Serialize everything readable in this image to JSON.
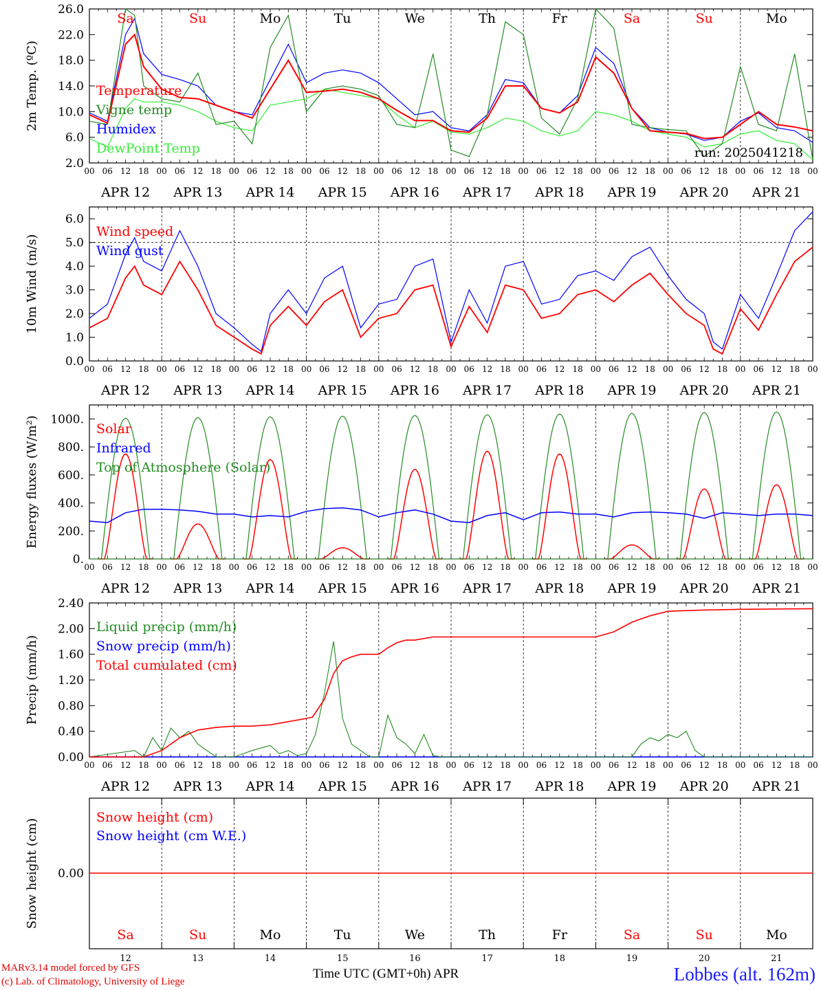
{
  "chart_data": [
    {
      "type": "line",
      "ylabel": "2m Temp. (ºC)",
      "ylim": [
        2.0,
        26.0
      ],
      "yticks": [
        "2.0",
        "6.0",
        "10.0",
        "14.0",
        "18.0",
        "22.0",
        "26.0"
      ],
      "run_label": "run: 2025041218",
      "series": [
        {
          "name": "Temperature",
          "color": "#ff0000",
          "x": [
            0,
            6,
            12,
            15,
            18,
            24,
            30,
            36,
            42,
            48,
            54,
            60,
            66,
            72,
            78,
            84,
            90,
            96,
            102,
            108,
            114,
            120,
            126,
            132,
            138,
            144,
            150,
            156,
            162,
            168,
            174,
            180,
            186,
            192,
            198,
            204,
            210,
            216,
            222,
            228,
            234,
            240
          ],
          "y": [
            9.5,
            8.2,
            20.5,
            22.0,
            17.0,
            13.5,
            12.2,
            12.0,
            11.0,
            10.0,
            9.0,
            13.5,
            18.0,
            13.0,
            13.2,
            13.5,
            13.0,
            12.0,
            10.2,
            8.6,
            8.6,
            7.0,
            6.8,
            9.0,
            14.0,
            14.0,
            10.5,
            9.8,
            11.5,
            18.5,
            16.0,
            10.5,
            7.0,
            6.8,
            6.6,
            5.8,
            6.0,
            8.0,
            10.0,
            8.0,
            7.6,
            7.0
          ]
        },
        {
          "name": "Vigne temp",
          "color": "#228b22",
          "x": [
            0,
            6,
            12,
            15,
            18,
            24,
            30,
            36,
            42,
            48,
            54,
            60,
            66,
            72,
            78,
            84,
            90,
            96,
            102,
            108,
            114,
            120,
            126,
            132,
            138,
            144,
            150,
            156,
            162,
            168,
            174,
            180,
            186,
            192,
            198,
            204,
            210,
            216,
            222,
            228,
            234,
            240
          ],
          "y": [
            8.5,
            8.0,
            26.0,
            25.0,
            14.0,
            12.0,
            11.5,
            16.0,
            8.0,
            8.5,
            5.0,
            20.0,
            25.0,
            10.0,
            13.5,
            14.0,
            13.5,
            12.5,
            8.0,
            7.5,
            19.0,
            4.0,
            3.0,
            9.5,
            24.0,
            22.0,
            9.0,
            6.5,
            12.0,
            26.0,
            23.0,
            8.0,
            7.5,
            7.2,
            7.0,
            3.0,
            5.0,
            17.0,
            8.0,
            7.0,
            19.0,
            2.5
          ]
        },
        {
          "name": "Humidex",
          "color": "#0000ff",
          "x": [
            0,
            6,
            12,
            15,
            18,
            24,
            30,
            36,
            42,
            48,
            54,
            60,
            66,
            72,
            78,
            84,
            90,
            96,
            102,
            108,
            114,
            120,
            126,
            132,
            138,
            144,
            150,
            156,
            162,
            168,
            174,
            180,
            186,
            192,
            198,
            204,
            210,
            216,
            222,
            228,
            234,
            240
          ],
          "y": [
            9.8,
            8.5,
            22.0,
            24.5,
            19.0,
            15.8,
            15.0,
            14.0,
            11.0,
            10.0,
            9.5,
            15.0,
            20.5,
            14.5,
            16.0,
            16.5,
            16.0,
            14.5,
            12.0,
            9.5,
            10.0,
            7.5,
            7.0,
            9.5,
            15.0,
            14.5,
            10.5,
            9.8,
            12.5,
            20.0,
            17.5,
            10.5,
            7.5,
            6.8,
            6.5,
            5.5,
            6.0,
            8.5,
            9.8,
            7.5,
            7.0,
            5.2
          ]
        },
        {
          "name": "DewPoint Temp",
          "color": "#33ee33",
          "x": [
            0,
            6,
            12,
            15,
            18,
            24,
            30,
            36,
            42,
            48,
            54,
            60,
            66,
            72,
            78,
            84,
            90,
            96,
            102,
            108,
            114,
            120,
            126,
            132,
            138,
            144,
            150,
            156,
            162,
            168,
            174,
            180,
            186,
            192,
            198,
            204,
            210,
            216,
            222,
            228,
            234,
            240
          ],
          "y": [
            5.8,
            4.5,
            10.5,
            12.0,
            11.5,
            11.5,
            11.0,
            10.0,
            8.5,
            7.5,
            7.0,
            11.0,
            11.5,
            12.0,
            13.5,
            13.0,
            12.5,
            12.0,
            9.5,
            7.5,
            8.5,
            6.8,
            6.5,
            7.5,
            9.0,
            8.5,
            7.0,
            6.2,
            7.0,
            10.0,
            9.5,
            8.5,
            7.0,
            6.5,
            6.0,
            4.5,
            5.0,
            6.5,
            7.0,
            5.5,
            5.0,
            2.5
          ]
        }
      ]
    },
    {
      "type": "line",
      "ylabel": "10m Wind (m/s)",
      "ylim": [
        0.0,
        6.5
      ],
      "yticks": [
        "0.0",
        "1.0",
        "2.0",
        "3.0",
        "4.0",
        "5.0",
        "6.0"
      ],
      "series": [
        {
          "name": "Wind speed",
          "color": "#ff0000",
          "x": [
            0,
            6,
            12,
            15,
            18,
            24,
            30,
            36,
            42,
            48,
            54,
            57,
            60,
            66,
            72,
            78,
            84,
            90,
            96,
            102,
            108,
            114,
            120,
            126,
            132,
            138,
            144,
            150,
            156,
            162,
            168,
            174,
            180,
            186,
            192,
            198,
            204,
            207,
            210,
            216,
            222,
            228,
            234,
            240
          ],
          "y": [
            1.4,
            1.8,
            3.5,
            4.0,
            3.2,
            2.8,
            4.2,
            3.0,
            1.5,
            1.0,
            0.5,
            0.3,
            1.5,
            2.3,
            1.5,
            2.5,
            3.0,
            1.0,
            1.8,
            2.0,
            3.0,
            3.2,
            0.6,
            2.3,
            1.2,
            3.2,
            3.0,
            1.8,
            2.0,
            2.8,
            3.0,
            2.5,
            3.2,
            3.7,
            2.8,
            2.0,
            1.5,
            0.5,
            0.3,
            2.2,
            1.3,
            2.8,
            4.2,
            4.8
          ]
        },
        {
          "name": "Wind gust",
          "color": "#0000ff",
          "x": [
            0,
            6,
            12,
            15,
            18,
            24,
            30,
            36,
            42,
            48,
            54,
            57,
            60,
            66,
            72,
            78,
            84,
            90,
            96,
            102,
            108,
            114,
            120,
            126,
            132,
            138,
            144,
            150,
            156,
            162,
            168,
            174,
            180,
            186,
            192,
            198,
            204,
            207,
            210,
            216,
            222,
            228,
            234,
            240
          ],
          "y": [
            1.8,
            2.4,
            4.5,
            5.2,
            4.2,
            3.8,
            5.5,
            4.0,
            2.0,
            1.4,
            0.7,
            0.4,
            2.0,
            3.0,
            2.0,
            3.5,
            4.0,
            1.4,
            2.4,
            2.6,
            4.0,
            4.3,
            0.8,
            3.0,
            1.6,
            4.0,
            4.2,
            2.4,
            2.6,
            3.6,
            3.8,
            3.4,
            4.4,
            4.8,
            3.6,
            2.6,
            2.0,
            0.8,
            0.5,
            2.8,
            1.8,
            3.6,
            5.5,
            6.3
          ]
        }
      ],
      "reference_line": 5.0
    },
    {
      "type": "line",
      "ylabel": "Energy fluxes (W/m²)",
      "ylim": [
        0,
        1100
      ],
      "yticks": [
        "0.",
        "200.",
        "400.",
        "600.",
        "800.",
        "1000."
      ],
      "series": [
        {
          "name": "Solar",
          "color": "#ff0000",
          "peaks": [
            750,
            250,
            710,
            80,
            640,
            770,
            750,
            100,
            500,
            530
          ]
        },
        {
          "name": "Infrared",
          "color": "#0000ff",
          "x": [
            0,
            6,
            12,
            18,
            24,
            30,
            36,
            42,
            48,
            54,
            60,
            66,
            72,
            78,
            84,
            90,
            96,
            102,
            108,
            114,
            120,
            126,
            132,
            138,
            144,
            150,
            156,
            162,
            168,
            174,
            180,
            186,
            192,
            198,
            204,
            210,
            216,
            222,
            228,
            234,
            240
          ],
          "y": [
            270,
            260,
            330,
            355,
            355,
            350,
            340,
            320,
            320,
            300,
            310,
            300,
            340,
            360,
            365,
            350,
            300,
            330,
            350,
            320,
            270,
            260,
            310,
            330,
            280,
            330,
            335,
            320,
            320,
            300,
            330,
            335,
            330,
            320,
            290,
            330,
            320,
            310,
            320,
            320,
            310
          ]
        },
        {
          "name": "Top of Atmosphere (Solar)",
          "color": "#228b22",
          "peaks": [
            1005,
            1010,
            1015,
            1020,
            1025,
            1030,
            1035,
            1040,
            1045,
            1050
          ]
        }
      ]
    },
    {
      "type": "line",
      "ylabel": "Precip (mm/h)",
      "ylim": [
        0.0,
        2.4
      ],
      "yticks": [
        "0.00",
        "0.40",
        "0.80",
        "1.20",
        "1.60",
        "2.00",
        "2.40"
      ],
      "series": [
        {
          "name": "Liquid precip (mm/h)",
          "color": "#228b22",
          "x": [
            0,
            15,
            18,
            21,
            24,
            27,
            30,
            33,
            36,
            39,
            42,
            48,
            54,
            60,
            63,
            66,
            69,
            72,
            75,
            78,
            81,
            84,
            87,
            90,
            93,
            96,
            99,
            102,
            105,
            108,
            111,
            114,
            117,
            120,
            180,
            183,
            186,
            189,
            192,
            195,
            198,
            201,
            204,
            240
          ],
          "y": [
            0,
            0.1,
            0,
            0.3,
            0.1,
            0.45,
            0.3,
            0.4,
            0.2,
            0.1,
            0,
            0,
            0.1,
            0.18,
            0.05,
            0.1,
            0.02,
            0.05,
            0.35,
            1.0,
            1.8,
            0.6,
            0.2,
            0.1,
            0,
            0,
            0.65,
            0.3,
            0.2,
            0.05,
            0.35,
            0.02,
            0,
            0,
            0,
            0.2,
            0.3,
            0.25,
            0.35,
            0.3,
            0.4,
            0.1,
            0,
            0
          ]
        },
        {
          "name": "Snow precip (mm/h)",
          "color": "#0000ff",
          "x": [
            0,
            240
          ],
          "y": [
            0,
            0
          ]
        },
        {
          "name": "Total cumulated (cm)",
          "color": "#ff0000",
          "x": [
            0,
            18,
            24,
            30,
            36,
            42,
            48,
            54,
            60,
            66,
            72,
            74,
            78,
            81,
            84,
            87,
            90,
            96,
            99,
            102,
            105,
            108,
            114,
            120,
            144,
            168,
            174,
            180,
            186,
            192,
            198,
            204,
            216,
            240
          ],
          "y": [
            0,
            0,
            0.1,
            0.3,
            0.42,
            0.46,
            0.48,
            0.48,
            0.5,
            0.55,
            0.6,
            0.62,
            0.9,
            1.3,
            1.5,
            1.56,
            1.6,
            1.6,
            1.7,
            1.78,
            1.82,
            1.82,
            1.87,
            1.87,
            1.87,
            1.87,
            1.95,
            2.1,
            2.2,
            2.27,
            2.28,
            2.29,
            2.3,
            2.31
          ]
        }
      ]
    },
    {
      "type": "line",
      "ylabel": "Snow height (cm)",
      "yticks": [
        "0.00"
      ],
      "series": [
        {
          "name": "Snow height (cm)",
          "color": "#ff0000",
          "x": [
            0,
            240
          ],
          "y": [
            0,
            0
          ]
        },
        {
          "name": "Snow height (cm W.E.)",
          "color": "#0000ff",
          "x": [
            0,
            240
          ],
          "y": [
            0,
            0
          ]
        }
      ]
    }
  ],
  "x_axis": {
    "hour_ticks": [
      "00",
      "06",
      "12",
      "18"
    ],
    "date_labels": [
      "APR 12",
      "APR 13",
      "APR 14",
      "APR 15",
      "APR 16",
      "APR 17",
      "APR 18",
      "APR 19",
      "APR 20",
      "APR 21"
    ],
    "day_names": [
      "Sa",
      "Su",
      "Mo",
      "Tu",
      "We",
      "Th",
      "Fr",
      "Sa",
      "Su",
      "Mo"
    ],
    "weekend_flags": [
      true,
      true,
      false,
      false,
      false,
      false,
      false,
      true,
      true,
      false
    ],
    "day_numbers": [
      "12",
      "13",
      "14",
      "15",
      "16",
      "17",
      "18",
      "19",
      "20",
      "21"
    ],
    "weekend_color": "#ff0000",
    "weekday_color": "#000000"
  },
  "footer": {
    "model": "MARv3.14 model forced by GFS",
    "lab": "(c) Lab. of Climatology, University of Liege",
    "axis_title": "Time UTC (GMT+0h) APR",
    "station": "Lobbes (alt. 162m)"
  }
}
